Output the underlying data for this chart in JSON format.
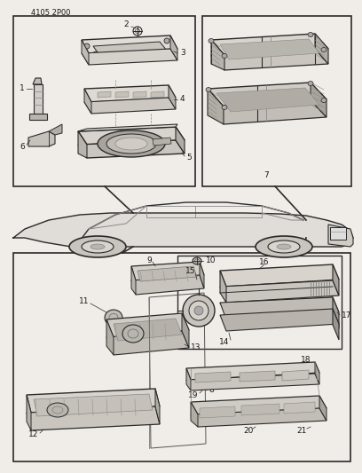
{
  "bg_color": "#f0ede8",
  "page_code": "4105 2P00",
  "lc": "#2a2a2a",
  "lfs": 6.5
}
